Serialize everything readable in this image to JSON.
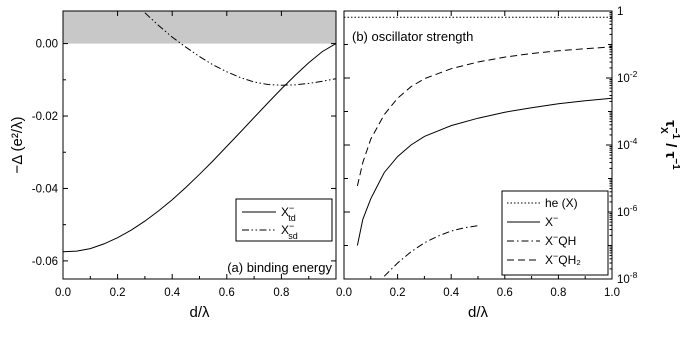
{
  "chart_data": [
    {
      "id": "a",
      "type": "line",
      "panel_label": "(a) binding energy",
      "xlabel": "d/λ",
      "ylabel": "−Δ (e²/λ)",
      "xlim": [
        0,
        1
      ],
      "ylim": [
        -0.065,
        0.009
      ],
      "x_ticks": [
        "0.0",
        "0.2",
        "0.4",
        "0.6",
        "0.8"
      ],
      "y_ticks": [
        "0.00",
        "-0.02",
        "-0.04",
        "-0.06"
      ],
      "shaded_region": [
        0,
        0.009
      ],
      "grid": false,
      "legend_position": "bottom-right",
      "series": [
        {
          "name_main": "X",
          "name_sup": "−",
          "name_sub": "td",
          "style": "solid",
          "x": [
            0.0,
            0.05,
            0.1,
            0.15,
            0.2,
            0.25,
            0.3,
            0.35,
            0.4,
            0.45,
            0.5,
            0.55,
            0.6,
            0.65,
            0.7,
            0.75,
            0.8,
            0.85,
            0.9,
            0.95,
            1.0
          ],
          "y": [
            -0.0575,
            -0.0573,
            -0.0566,
            -0.0553,
            -0.0536,
            -0.0515,
            -0.049,
            -0.0462,
            -0.0431,
            -0.0397,
            -0.0361,
            -0.0323,
            -0.0284,
            -0.0244,
            -0.0204,
            -0.0164,
            -0.0125,
            -0.0088,
            -0.0053,
            -0.0022,
            0.0
          ]
        },
        {
          "name_main": "X",
          "name_sup": "−",
          "name_sub": "sd",
          "style": "dash-dot-dot",
          "x": [
            0.3,
            0.35,
            0.4,
            0.45,
            0.5,
            0.55,
            0.6,
            0.65,
            0.7,
            0.75,
            0.8,
            0.85,
            0.9,
            0.95,
            1.0
          ],
          "y": [
            0.0085,
            0.005,
            0.0018,
            -0.001,
            -0.0036,
            -0.0059,
            -0.0078,
            -0.0094,
            -0.0106,
            -0.0113,
            -0.0115,
            -0.0114,
            -0.011,
            -0.0104,
            -0.0097
          ]
        }
      ]
    },
    {
      "id": "b",
      "type": "line",
      "panel_label": "(b) oscillator strength",
      "xlabel": "d/λ",
      "ylabel_main": "τ",
      "ylabel_sub": "X",
      "ylabel_sup": "−1",
      "ylabel_sep": " / ",
      "xlim": [
        0,
        1
      ],
      "ylim": [
        1e-08,
        1
      ],
      "y_scale": "log",
      "x_ticks": [
        "0.0",
        "0.2",
        "0.4",
        "0.6",
        "0.8",
        "1.0"
      ],
      "y_ticks": [
        {
          "value": 1,
          "label": "1"
        },
        {
          "value": 0.01,
          "label": "10",
          "sup": "-2"
        },
        {
          "value": 0.0001,
          "label": "10",
          "sup": "-4"
        },
        {
          "value": 1e-06,
          "label": "10",
          "sup": "-6"
        },
        {
          "value": 1e-08,
          "label": "10",
          "sup": "-8"
        }
      ],
      "grid": false,
      "legend_position": "bottom-right",
      "series": [
        {
          "name_main": "he (X)",
          "name_sup": "",
          "name_sub": "",
          "style": "dotted",
          "x": [
            0.0,
            1.0
          ],
          "y": [
            0.65,
            0.65
          ]
        },
        {
          "name_main": "X",
          "name_sup": "−",
          "name_sub": "",
          "style": "solid",
          "x": [
            0.05,
            0.07,
            0.1,
            0.15,
            0.2,
            0.25,
            0.3,
            0.4,
            0.5,
            0.6,
            0.7,
            0.8,
            0.9,
            1.0
          ],
          "y": [
            1e-07,
            6e-07,
            2.5e-06,
            1.5e-05,
            4.5e-05,
            0.0001,
            0.00018,
            0.00038,
            0.00063,
            0.00095,
            0.0013,
            0.0017,
            0.0021,
            0.0025
          ]
        },
        {
          "name_main": "X",
          "name_sup": "−",
          "name_sub": "QH",
          "style": "dash-dot",
          "x": [
            0.15,
            0.2,
            0.25,
            0.3,
            0.35,
            0.4,
            0.45,
            0.5
          ],
          "y": [
            1.2e-08,
            3e-08,
            6.5e-08,
            1.2e-07,
            1.9e-07,
            2.7e-07,
            3.4e-07,
            3.9e-07
          ]
        },
        {
          "name_main": "X",
          "name_sup": "−",
          "name_sub": "QH₂",
          "style": "dashed",
          "x": [
            0.05,
            0.07,
            0.1,
            0.15,
            0.2,
            0.25,
            0.3,
            0.4,
            0.5,
            0.6,
            0.7,
            0.8,
            0.9,
            1.0
          ],
          "y": [
            6e-06,
            3e-05,
            0.00015,
            0.0008,
            0.0025,
            0.0055,
            0.0095,
            0.019,
            0.03,
            0.042,
            0.054,
            0.065,
            0.075,
            0.085
          ]
        }
      ]
    }
  ]
}
